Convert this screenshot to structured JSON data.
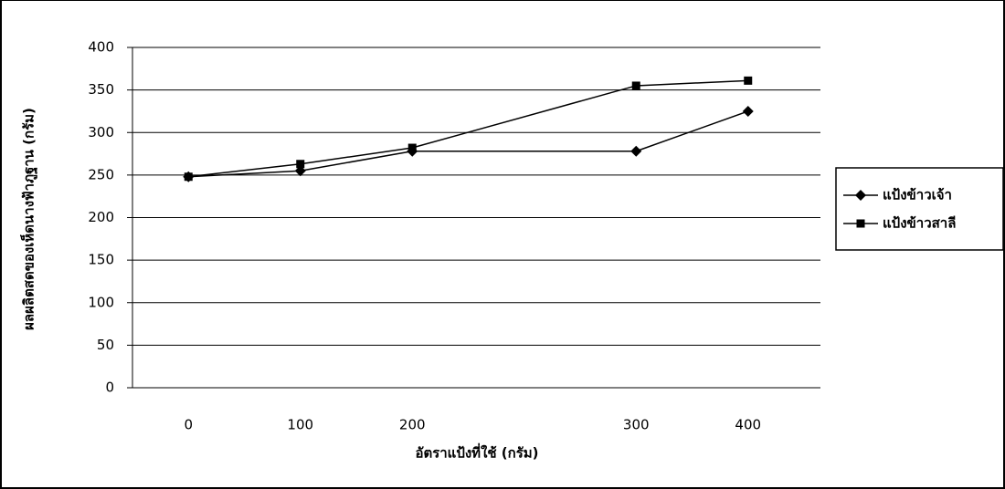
{
  "chart_data": {
    "type": "line",
    "x_label": "อัตราแป้งที่ใช้ (กรัม)",
    "y_label": "ผลผลิตสดของเห็ดนางฟ้าภูฐาน (กรัม)",
    "categories": [
      "0",
      "100",
      "200",
      null,
      "300",
      "400"
    ],
    "series": [
      {
        "name": "แป้งข้าวเจ้า",
        "color": "#000000",
        "marker": "diamond",
        "values": [
          248,
          255,
          278,
          null,
          278,
          325
        ]
      },
      {
        "name": "แป้งข้าวสาลี",
        "color": "#000000",
        "marker": "square",
        "values": [
          248,
          263,
          282,
          null,
          355,
          361
        ]
      }
    ],
    "connect_gaps": true,
    "ylim": [
      0,
      400
    ],
    "yticks": [
      0,
      50,
      100,
      150,
      200,
      250,
      300,
      350,
      400
    ],
    "grid": true,
    "legend": "right"
  }
}
